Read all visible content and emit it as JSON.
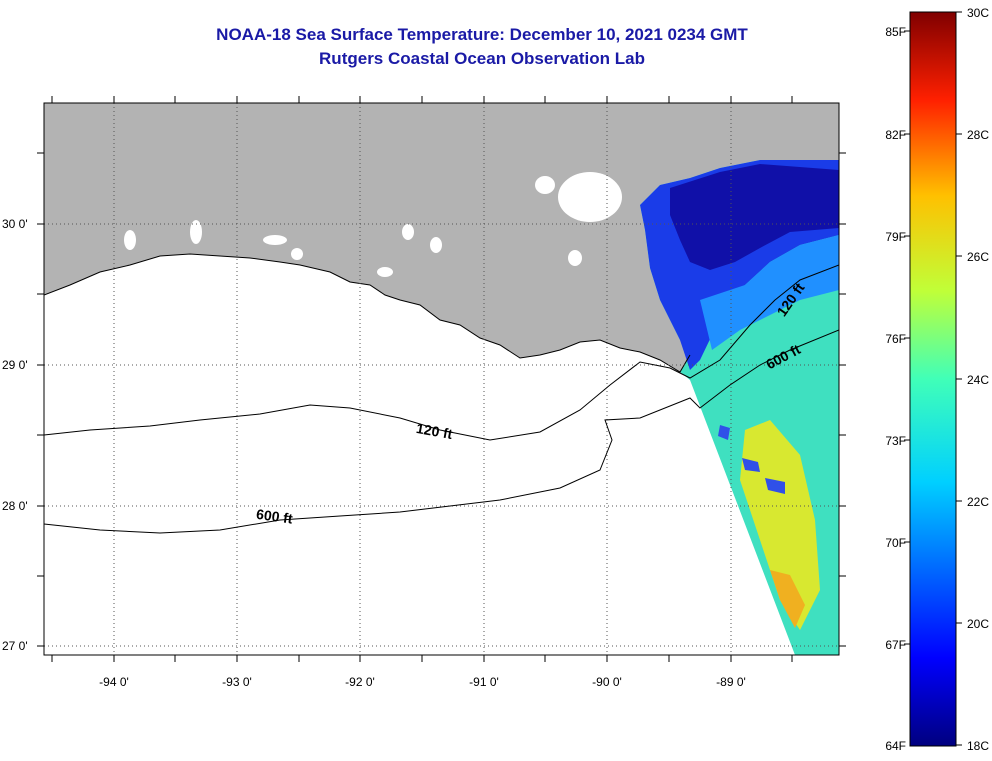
{
  "title": {
    "line1": "NOAA-18 Sea Surface Temperature:  December 10, 2021 0234 GMT",
    "line2": "Rutgers Coastal Ocean Observation Lab"
  },
  "map": {
    "latitude_labels": [
      "30 0'",
      "29 0'",
      "28 0'",
      "27 0'"
    ],
    "longitude_labels": [
      "-94 0'",
      "-93 0'",
      "-92 0'",
      "-91 0'",
      "-90 0'",
      "-89 0'"
    ],
    "contour_labels": [
      "120 ft",
      "600 ft",
      "120 ft",
      "600 ft"
    ],
    "land_color": "#b3b3b3",
    "water_no_data_color": "#ffffff"
  },
  "colorbar": {
    "fahrenheit_labels": [
      "85F",
      "82F",
      "79F",
      "76F",
      "73F",
      "70F",
      "67F",
      "64F"
    ],
    "celsius_labels": [
      "30C",
      "28C",
      "26C",
      "24C",
      "22C",
      "20C",
      "18C"
    ],
    "min_c": 18,
    "max_c": 30
  }
}
